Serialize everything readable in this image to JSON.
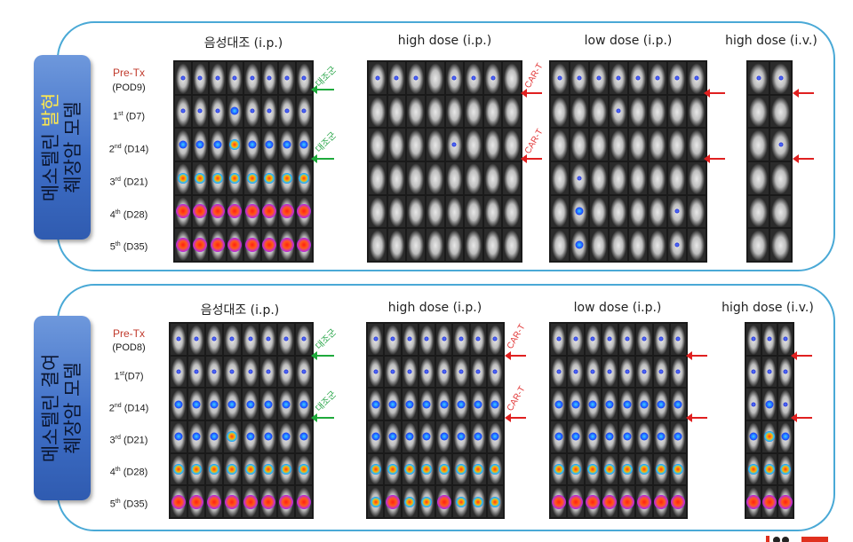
{
  "panels": [
    {
      "side_label": {
        "line1_a": "메소텔린 ",
        "line1_hl": "발현",
        "line2": "췌장암 모델"
      },
      "groups": [
        "음성대조 (i.p.)",
        "high dose (i.p.)",
        "low dose (i.p.)",
        "high dose (i.v.)"
      ],
      "rows": [
        {
          "label": "Pre-Tx",
          "label2": "(POD9)"
        },
        {
          "ord": "1",
          "sup": "st",
          "day": "(D7)"
        },
        {
          "ord": "2",
          "sup": "nd",
          "day": "(D14)"
        },
        {
          "ord": "3",
          "sup": "rd",
          "day": "(D21)"
        },
        {
          "ord": "4",
          "sup": "th",
          "day": "(D28)"
        },
        {
          "ord": "5",
          "sup": "th",
          "day": "(D35)"
        }
      ],
      "control_label": "대조군",
      "cart_label": "CAR-T"
    },
    {
      "side_label": {
        "line1_a": "메소텔린 결여",
        "line1_hl": "",
        "line2": "췌장암 모델"
      },
      "groups": [
        "음성대조 (i.p.)",
        "high dose (i.p.)",
        "low dose (i.p.)",
        "high dose (i.v.)"
      ],
      "rows": [
        {
          "label": "Pre-Tx",
          "label2": "(POD8)"
        },
        {
          "ord": "1",
          "sup": "st",
          "day": "(D7)"
        },
        {
          "ord": "2",
          "sup": "nd",
          "day": "(D14)"
        },
        {
          "ord": "3",
          "sup": "rd",
          "day": "(D21)"
        },
        {
          "ord": "4",
          "sup": "th",
          "day": "(D28)"
        },
        {
          "ord": "5",
          "sup": "th",
          "day": "(D35)"
        }
      ],
      "control_label": "대조군",
      "cart_label": "CAR-T"
    }
  ],
  "colors": {
    "panel_border": "#4aa9d6",
    "side_box": "#3f6fc7",
    "highlight": "#ffe94d",
    "control_green": "#1faa3c",
    "cart_red": "#e02020"
  }
}
